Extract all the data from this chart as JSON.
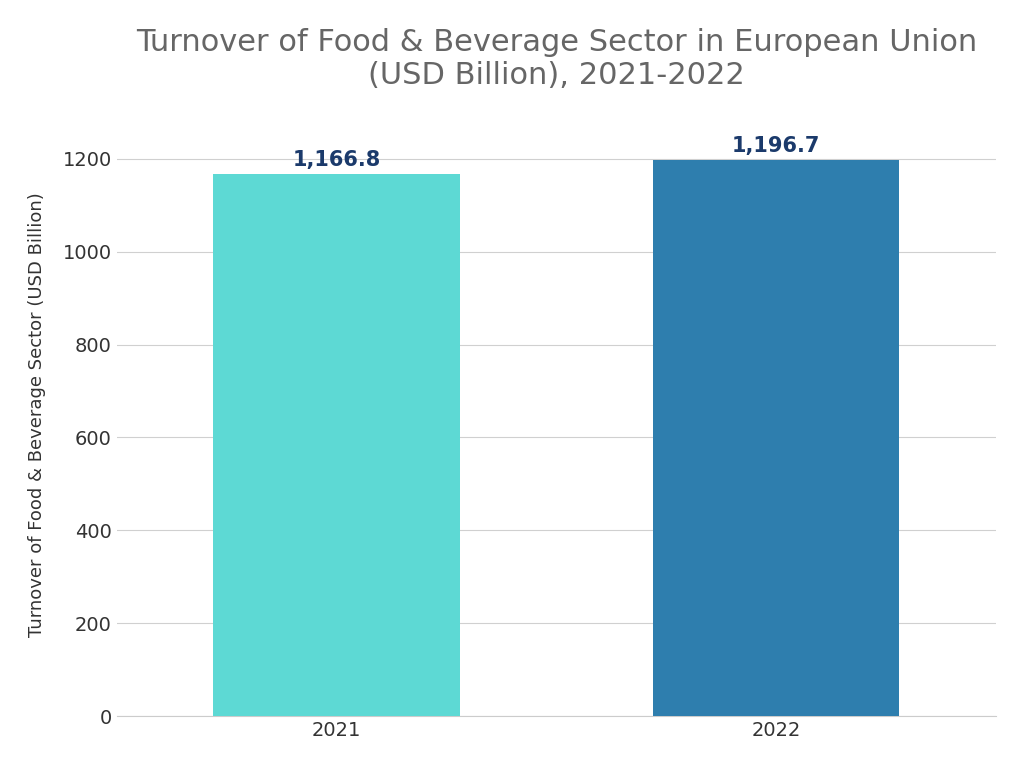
{
  "title": "Turnover of Food & Beverage Sector in European Union\n(USD Billion), 2021-2022",
  "ylabel": "Turnover of Food & Beverage Sector (USD Billion)",
  "categories": [
    "2021",
    "2022"
  ],
  "values": [
    1166.8,
    1196.7
  ],
  "bar_colors": [
    "#5DD9D4",
    "#2E7EAE"
  ],
  "label_color": "#1B3A6B",
  "title_color": "#666666",
  "axis_label_color": "#333333",
  "tick_color": "#333333",
  "background_color": "#ffffff",
  "ylim": [
    0,
    1300
  ],
  "yticks": [
    0,
    200,
    400,
    600,
    800,
    1000,
    1200
  ],
  "bar_width": 0.28,
  "bar_positions": [
    0.25,
    0.75
  ],
  "xlim": [
    0.0,
    1.0
  ],
  "title_fontsize": 22,
  "label_fontsize": 15,
  "ylabel_fontsize": 13,
  "tick_fontsize": 14,
  "value_labels": [
    "1,166.8",
    "1,196.7"
  ]
}
